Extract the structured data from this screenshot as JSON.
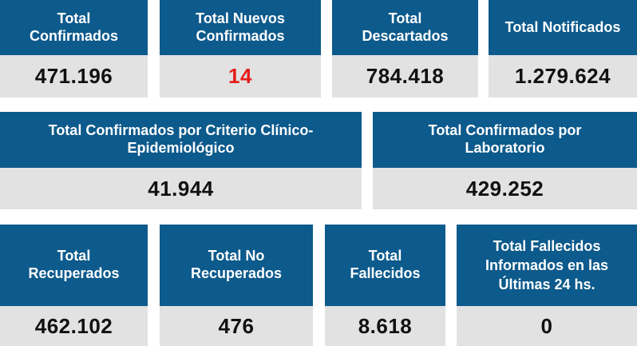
{
  "row1": [
    {
      "title": [
        "Total",
        "Confirmados"
      ],
      "value": "471.196"
    },
    {
      "title": [
        "Total Nuevos",
        "Confirmados"
      ],
      "value": "14"
    },
    {
      "title": [
        "Total",
        "Descartados"
      ],
      "value": "784.418"
    },
    {
      "title": [
        "Total Notificados"
      ],
      "value": "1.279.624"
    }
  ],
  "row2": [
    {
      "title": [
        "Total Confirmados por Criterio Clínico-",
        "Epidemiológico"
      ],
      "value": "41.944"
    },
    {
      "title": [
        "Total Confirmados por",
        "Laboratorio"
      ],
      "value": "429.252"
    }
  ],
  "row3": [
    {
      "title": [
        "Total",
        "Recuperados"
      ],
      "value": "462.102"
    },
    {
      "title": [
        "Total No",
        "Recuperados"
      ],
      "value": "476"
    },
    {
      "title": [
        "Total",
        "Fallecidos"
      ],
      "value": "8.618"
    },
    {
      "title": [
        "Total Fallecidos",
        "Informados en las",
        "Últimas 24 hs."
      ],
      "value": "0"
    }
  ],
  "colors": {
    "header": "#0d5a8c",
    "value_bg": "#e2e2e2",
    "highlight": "#e51d1d"
  }
}
